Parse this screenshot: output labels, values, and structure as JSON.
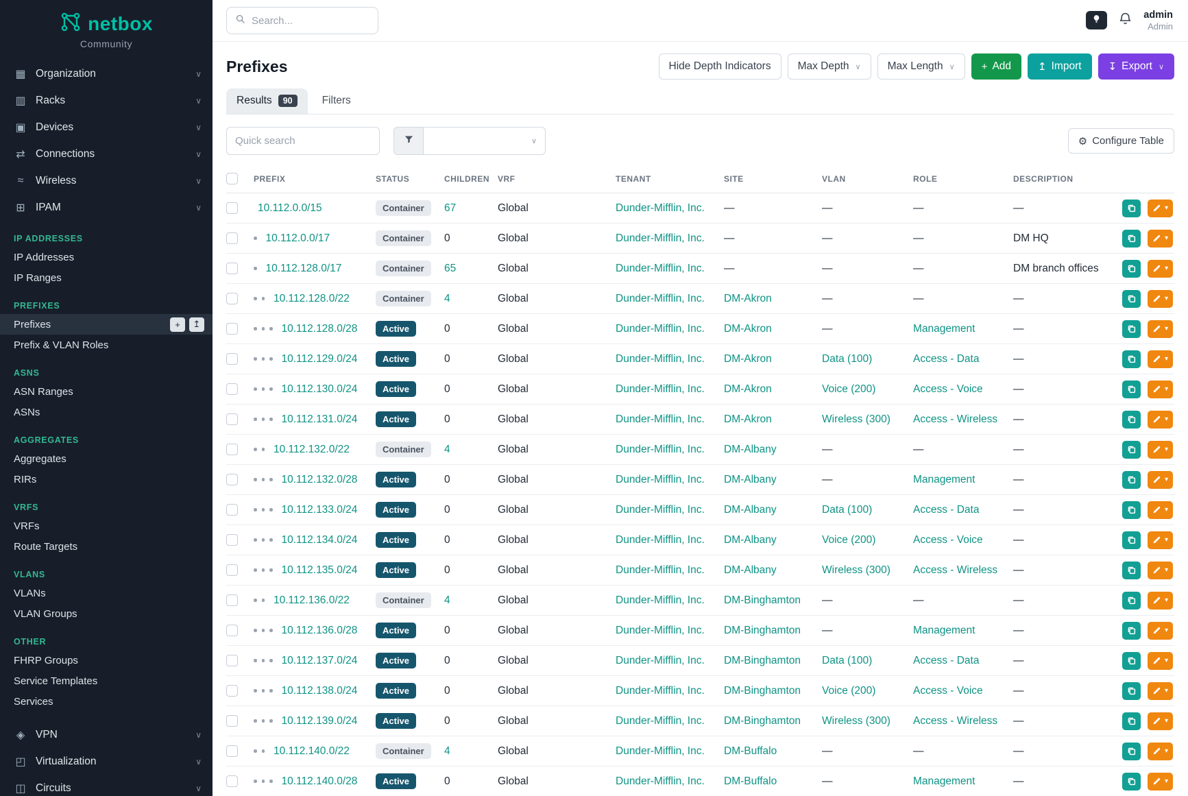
{
  "brand": {
    "name": "netbox",
    "subtitle": "Community"
  },
  "topbar": {
    "search_placeholder": "Search...",
    "user": {
      "name": "admin",
      "role": "Admin"
    }
  },
  "sidebar": {
    "top_items": [
      {
        "label": "Organization",
        "icon": "building-icon"
      },
      {
        "label": "Racks",
        "icon": "rack-icon"
      },
      {
        "label": "Devices",
        "icon": "device-icon"
      },
      {
        "label": "Connections",
        "icon": "connections-icon"
      },
      {
        "label": "Wireless",
        "icon": "wireless-icon"
      },
      {
        "label": "IPAM",
        "icon": "ipam-icon"
      }
    ],
    "groups": [
      {
        "header": "IP ADDRESSES",
        "items": [
          "IP Addresses",
          "IP Ranges"
        ]
      },
      {
        "header": "PREFIXES",
        "items": [
          "Prefixes",
          "Prefix & VLAN Roles"
        ],
        "active": "Prefixes"
      },
      {
        "header": "ASNS",
        "items": [
          "ASN Ranges",
          "ASNs"
        ]
      },
      {
        "header": "AGGREGATES",
        "items": [
          "Aggregates",
          "RIRs"
        ]
      },
      {
        "header": "VRFS",
        "items": [
          "VRFs",
          "Route Targets"
        ]
      },
      {
        "header": "VLANS",
        "items": [
          "VLANs",
          "VLAN Groups"
        ]
      },
      {
        "header": "OTHER",
        "items": [
          "FHRP Groups",
          "Service Templates",
          "Services"
        ]
      }
    ],
    "bottom_items": [
      {
        "label": "VPN",
        "icon": "vpn-icon"
      },
      {
        "label": "Virtualization",
        "icon": "virtualization-icon"
      },
      {
        "label": "Circuits",
        "icon": "circuits-icon"
      }
    ],
    "active_item_buttons": {
      "add": "+",
      "import": "↥"
    }
  },
  "page": {
    "title": "Prefixes",
    "hide_depth_label": "Hide Depth Indicators",
    "max_depth_label": "Max Depth",
    "max_length_label": "Max Length",
    "add_label": "Add",
    "import_label": "Import",
    "export_label": "Export"
  },
  "tabs": {
    "results_label": "Results",
    "results_count": "90",
    "filters_label": "Filters"
  },
  "toolbar": {
    "quick_search_placeholder": "Quick search",
    "configure_table_label": "Configure Table"
  },
  "table": {
    "columns": [
      "PREFIX",
      "STATUS",
      "CHILDREN",
      "VRF",
      "TENANT",
      "SITE",
      "VLAN",
      "ROLE",
      "DESCRIPTION"
    ],
    "rows": [
      {
        "prefix": "10.112.0.0/15",
        "depth": 0,
        "status": "Container",
        "children": "67",
        "vrf": "Global",
        "tenant": "Dunder-Mifflin, Inc.",
        "site": "—",
        "vlan": "—",
        "role": "—",
        "description": "—"
      },
      {
        "prefix": "10.112.0.0/17",
        "depth": 1,
        "status": "Container",
        "children": "0",
        "vrf": "Global",
        "tenant": "Dunder-Mifflin, Inc.",
        "site": "—",
        "vlan": "—",
        "role": "—",
        "description": "DM HQ"
      },
      {
        "prefix": "10.112.128.0/17",
        "depth": 1,
        "status": "Container",
        "children": "65",
        "vrf": "Global",
        "tenant": "Dunder-Mifflin, Inc.",
        "site": "—",
        "vlan": "—",
        "role": "—",
        "description": "DM branch offices"
      },
      {
        "prefix": "10.112.128.0/22",
        "depth": 2,
        "status": "Container",
        "children": "4",
        "vrf": "Global",
        "tenant": "Dunder-Mifflin, Inc.",
        "site": "DM-Akron",
        "vlan": "—",
        "role": "—",
        "description": "—"
      },
      {
        "prefix": "10.112.128.0/28",
        "depth": 3,
        "status": "Active",
        "children": "0",
        "vrf": "Global",
        "tenant": "Dunder-Mifflin, Inc.",
        "site": "DM-Akron",
        "vlan": "—",
        "role": "Management",
        "description": "—"
      },
      {
        "prefix": "10.112.129.0/24",
        "depth": 3,
        "status": "Active",
        "children": "0",
        "vrf": "Global",
        "tenant": "Dunder-Mifflin, Inc.",
        "site": "DM-Akron",
        "vlan": "Data (100)",
        "role": "Access - Data",
        "description": "—"
      },
      {
        "prefix": "10.112.130.0/24",
        "depth": 3,
        "status": "Active",
        "children": "0",
        "vrf": "Global",
        "tenant": "Dunder-Mifflin, Inc.",
        "site": "DM-Akron",
        "vlan": "Voice (200)",
        "role": "Access - Voice",
        "description": "—"
      },
      {
        "prefix": "10.112.131.0/24",
        "depth": 3,
        "status": "Active",
        "children": "0",
        "vrf": "Global",
        "tenant": "Dunder-Mifflin, Inc.",
        "site": "DM-Akron",
        "vlan": "Wireless (300)",
        "role": "Access - Wireless",
        "description": "—"
      },
      {
        "prefix": "10.112.132.0/22",
        "depth": 2,
        "status": "Container",
        "children": "4",
        "vrf": "Global",
        "tenant": "Dunder-Mifflin, Inc.",
        "site": "DM-Albany",
        "vlan": "—",
        "role": "—",
        "description": "—"
      },
      {
        "prefix": "10.112.132.0/28",
        "depth": 3,
        "status": "Active",
        "children": "0",
        "vrf": "Global",
        "tenant": "Dunder-Mifflin, Inc.",
        "site": "DM-Albany",
        "vlan": "—",
        "role": "Management",
        "description": "—"
      },
      {
        "prefix": "10.112.133.0/24",
        "depth": 3,
        "status": "Active",
        "children": "0",
        "vrf": "Global",
        "tenant": "Dunder-Mifflin, Inc.",
        "site": "DM-Albany",
        "vlan": "Data (100)",
        "role": "Access - Data",
        "description": "—"
      },
      {
        "prefix": "10.112.134.0/24",
        "depth": 3,
        "status": "Active",
        "children": "0",
        "vrf": "Global",
        "tenant": "Dunder-Mifflin, Inc.",
        "site": "DM-Albany",
        "vlan": "Voice (200)",
        "role": "Access - Voice",
        "description": "—"
      },
      {
        "prefix": "10.112.135.0/24",
        "depth": 3,
        "status": "Active",
        "children": "0",
        "vrf": "Global",
        "tenant": "Dunder-Mifflin, Inc.",
        "site": "DM-Albany",
        "vlan": "Wireless (300)",
        "role": "Access - Wireless",
        "description": "—"
      },
      {
        "prefix": "10.112.136.0/22",
        "depth": 2,
        "status": "Container",
        "children": "4",
        "vrf": "Global",
        "tenant": "Dunder-Mifflin, Inc.",
        "site": "DM-Binghamton",
        "vlan": "—",
        "role": "—",
        "description": "—"
      },
      {
        "prefix": "10.112.136.0/28",
        "depth": 3,
        "status": "Active",
        "children": "0",
        "vrf": "Global",
        "tenant": "Dunder-Mifflin, Inc.",
        "site": "DM-Binghamton",
        "vlan": "—",
        "role": "Management",
        "description": "—"
      },
      {
        "prefix": "10.112.137.0/24",
        "depth": 3,
        "status": "Active",
        "children": "0",
        "vrf": "Global",
        "tenant": "Dunder-Mifflin, Inc.",
        "site": "DM-Binghamton",
        "vlan": "Data (100)",
        "role": "Access - Data",
        "description": "—"
      },
      {
        "prefix": "10.112.138.0/24",
        "depth": 3,
        "status": "Active",
        "children": "0",
        "vrf": "Global",
        "tenant": "Dunder-Mifflin, Inc.",
        "site": "DM-Binghamton",
        "vlan": "Voice (200)",
        "role": "Access - Voice",
        "description": "—"
      },
      {
        "prefix": "10.112.139.0/24",
        "depth": 3,
        "status": "Active",
        "children": "0",
        "vrf": "Global",
        "tenant": "Dunder-Mifflin, Inc.",
        "site": "DM-Binghamton",
        "vlan": "Wireless (300)",
        "role": "Access - Wireless",
        "description": "—"
      },
      {
        "prefix": "10.112.140.0/22",
        "depth": 2,
        "status": "Container",
        "children": "4",
        "vrf": "Global",
        "tenant": "Dunder-Mifflin, Inc.",
        "site": "DM-Buffalo",
        "vlan": "—",
        "role": "—",
        "description": "—"
      },
      {
        "prefix": "10.112.140.0/28",
        "depth": 3,
        "status": "Active",
        "children": "0",
        "vrf": "Global",
        "tenant": "Dunder-Mifflin, Inc.",
        "site": "DM-Buffalo",
        "vlan": "—",
        "role": "Management",
        "description": "—"
      }
    ]
  },
  "colors": {
    "brand_teal": "#00bfa5",
    "sidebar_section_header": "#35b793",
    "link_teal": "#0e9384",
    "add_green": "#13984b",
    "import_teal": "#0ca19e",
    "export_purple": "#7b3fe4",
    "active_badge_bg": "#16566d",
    "copy_button": "#11a093",
    "edit_button": "#f0870f"
  }
}
